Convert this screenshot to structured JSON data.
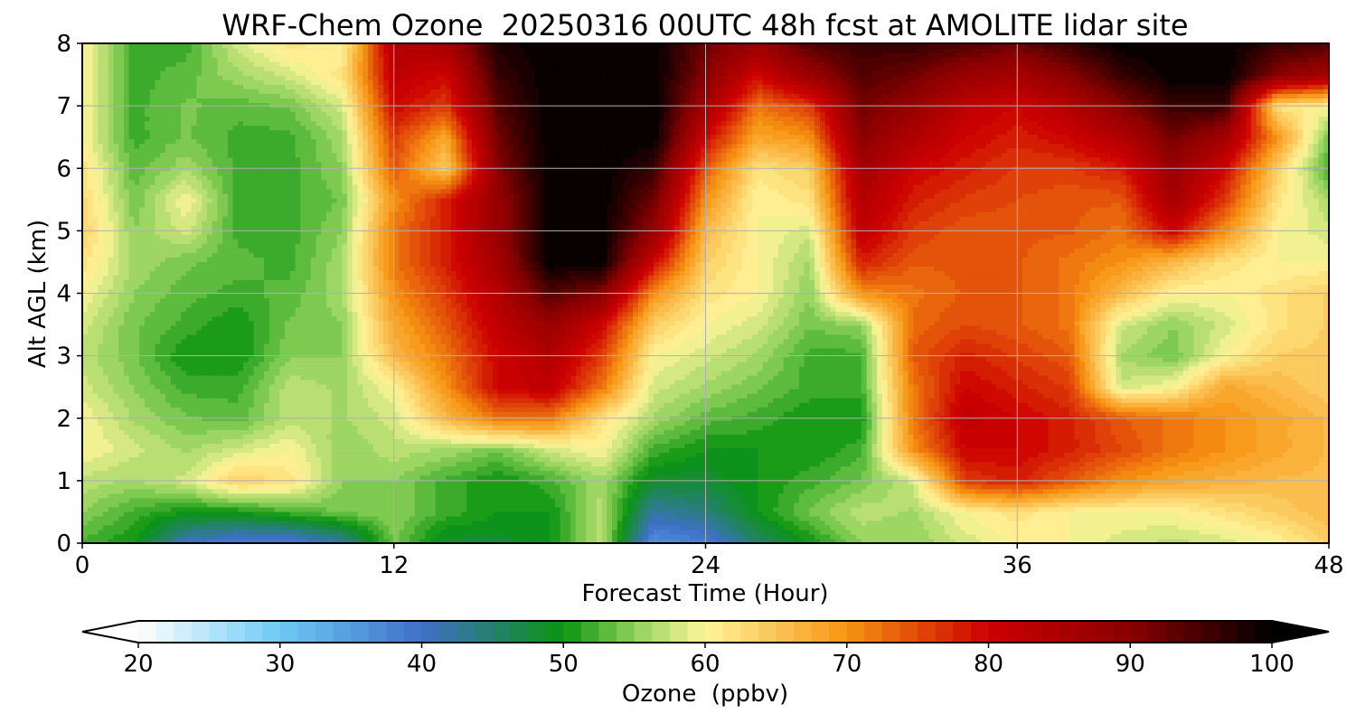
{
  "chart_data": {
    "type": "heatmap",
    "title": "WRF-Chem Ozone  20250316 00UTC 48h fcst at AMOLITE lidar site",
    "xlabel": "Forecast Time (Hour)",
    "ylabel": "Alt AGL (km)",
    "xlim": [
      0,
      48
    ],
    "ylim": [
      0,
      8
    ],
    "x_ticks": [
      "0",
      "12",
      "24",
      "36",
      "48"
    ],
    "y_ticks": [
      "0",
      "1",
      "2",
      "3",
      "4",
      "5",
      "6",
      "7",
      "8"
    ],
    "grid": true,
    "colorbar": {
      "label": "Ozone  (ppbv)",
      "range": [
        20,
        100
      ],
      "extend": "both",
      "ticks": [
        "20",
        "30",
        "40",
        "50",
        "60",
        "70",
        "80",
        "90",
        "100"
      ],
      "stops": [
        {
          "value": 20,
          "color": "#ffffff"
        },
        {
          "value": 30,
          "color": "#6ccaf5"
        },
        {
          "value": 40,
          "color": "#3f6fc8"
        },
        {
          "value": 50,
          "color": "#0a9410"
        },
        {
          "value": 55,
          "color": "#8fd25a"
        },
        {
          "value": 60,
          "color": "#fff59a"
        },
        {
          "value": 70,
          "color": "#f79412"
        },
        {
          "value": 80,
          "color": "#cc0000"
        },
        {
          "value": 90,
          "color": "#8a0000"
        },
        {
          "value": 100,
          "color": "#000000"
        }
      ]
    },
    "grid_hours": [
      0,
      2,
      4,
      6,
      8,
      10,
      12,
      14,
      16,
      18,
      20,
      22,
      24,
      26,
      28,
      30,
      32,
      34,
      36,
      38,
      40,
      42,
      44,
      46,
      48
    ],
    "grid_alts_km": [
      0,
      0.5,
      1,
      1.5,
      2,
      2.5,
      3,
      3.5,
      4,
      4.5,
      5,
      5.5,
      6,
      6.5,
      7,
      7.5,
      8
    ],
    "ozone_ppbv": [
      [
        52,
        50,
        40,
        38,
        38,
        42,
        54,
        48,
        48,
        50,
        57,
        36,
        38,
        45,
        50,
        55,
        55,
        58,
        60,
        60,
        58,
        57,
        58,
        60,
        64
      ],
      [
        55,
        52,
        50,
        50,
        52,
        54,
        55,
        52,
        50,
        50,
        57,
        42,
        44,
        50,
        54,
        57,
        56,
        60,
        62,
        60,
        60,
        60,
        62,
        64,
        66
      ],
      [
        57,
        56,
        58,
        64,
        62,
        55,
        55,
        52,
        50,
        52,
        56,
        48,
        48,
        50,
        52,
        54,
        58,
        76,
        78,
        74,
        70,
        68,
        67,
        66,
        66
      ],
      [
        60,
        58,
        56,
        58,
        60,
        55,
        57,
        56,
        54,
        58,
        60,
        52,
        50,
        50,
        50,
        52,
        70,
        80,
        80,
        78,
        75,
        72,
        70,
        68,
        66
      ],
      [
        60,
        56,
        54,
        53,
        57,
        56,
        58,
        66,
        72,
        72,
        62,
        56,
        53,
        52,
        50,
        50,
        72,
        82,
        80,
        78,
        74,
        72,
        70,
        68,
        66
      ],
      [
        58,
        55,
        52,
        52,
        57,
        56,
        60,
        70,
        80,
        82,
        72,
        58,
        56,
        54,
        52,
        52,
        72,
        80,
        78,
        76,
        58,
        60,
        68,
        66,
        64
      ],
      [
        57,
        54,
        50,
        50,
        55,
        55,
        66,
        72,
        80,
        84,
        76,
        60,
        58,
        56,
        52,
        52,
        74,
        78,
        76,
        74,
        56,
        54,
        60,
        64,
        64
      ],
      [
        58,
        54,
        52,
        50,
        54,
        55,
        68,
        74,
        82,
        88,
        80,
        64,
        60,
        58,
        54,
        55,
        73,
        75,
        74,
        72,
        58,
        55,
        58,
        62,
        64
      ],
      [
        60,
        55,
        53,
        52,
        53,
        56,
        70,
        76,
        84,
        94,
        90,
        70,
        62,
        60,
        55,
        70,
        72,
        74,
        74,
        72,
        66,
        60,
        60,
        62,
        64
      ],
      [
        62,
        56,
        54,
        53,
        52,
        56,
        72,
        78,
        86,
        100,
        100,
        80,
        64,
        60,
        56,
        78,
        74,
        74,
        74,
        72,
        70,
        66,
        62,
        60,
        60
      ],
      [
        64,
        55,
        58,
        52,
        52,
        55,
        72,
        78,
        88,
        100,
        100,
        88,
        66,
        60,
        58,
        82,
        76,
        74,
        74,
        74,
        72,
        80,
        70,
        60,
        58
      ],
      [
        63,
        54,
        60,
        52,
        52,
        54,
        70,
        78,
        88,
        100,
        100,
        92,
        70,
        60,
        62,
        84,
        78,
        76,
        75,
        74,
        74,
        86,
        76,
        62,
        56
      ],
      [
        62,
        53,
        56,
        52,
        52,
        55,
        74,
        64,
        90,
        100,
        100,
        96,
        74,
        62,
        64,
        86,
        80,
        78,
        76,
        76,
        78,
        88,
        80,
        64,
        52
      ],
      [
        60,
        52,
        54,
        52,
        52,
        56,
        76,
        68,
        92,
        100,
        100,
        100,
        80,
        68,
        70,
        90,
        84,
        80,
        78,
        80,
        84,
        92,
        86,
        70,
        54
      ],
      [
        60,
        52,
        54,
        53,
        54,
        58,
        80,
        76,
        94,
        100,
        100,
        100,
        86,
        72,
        76,
        92,
        88,
        82,
        80,
        84,
        90,
        96,
        96,
        62,
        60
      ],
      [
        60,
        52,
        53,
        56,
        58,
        62,
        82,
        80,
        96,
        100,
        100,
        100,
        90,
        80,
        88,
        94,
        92,
        88,
        86,
        90,
        96,
        100,
        100,
        90,
        86
      ],
      [
        60,
        52,
        52,
        58,
        62,
        60,
        84,
        86,
        98,
        100,
        100,
        100,
        92,
        88,
        94,
        96,
        96,
        94,
        92,
        96,
        100,
        100,
        100,
        96,
        94
      ]
    ]
  }
}
